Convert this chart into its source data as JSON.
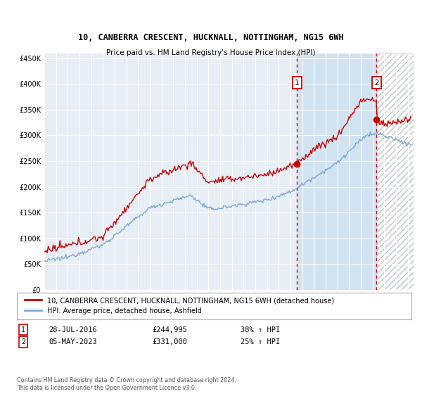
{
  "title1": "10, CANBERRA CRESCENT, HUCKNALL, NOTTINGHAM, NG15 6WH",
  "title2": "Price paid vs. HM Land Registry's House Price Index (HPI)",
  "legend_line1": "10, CANBERRA CRESCENT, HUCKNALL, NOTTINGHAM, NG15 6WH (detached house)",
  "legend_line2": "HPI: Average price, detached house, Ashfield",
  "annotation1_label": "1",
  "annotation1_date": "28-JUL-2016",
  "annotation1_price": "£244,995",
  "annotation1_hpi": "38% ↑ HPI",
  "annotation2_label": "2",
  "annotation2_date": "05-MAY-2023",
  "annotation2_price": "£331,000",
  "annotation2_hpi": "25% ↑ HPI",
  "copyright_text": "Contains HM Land Registry data © Crown copyright and database right 2024.\nThis data is licensed under the Open Government Licence v3.0.",
  "hpi_color": "#7aaadd",
  "price_color": "#cc0000",
  "annotation_color": "#cc0000",
  "vline_color": "#cc0000",
  "background_color": "#ffffff",
  "plot_bg_color": "#e8eef5",
  "grid_color": "#ffffff",
  "blue_fill_color": "#c8ddf0",
  "hatch_bg_color": "#f0f0f0",
  "ylim": [
    0,
    460000
  ],
  "xlim_start": 1995.0,
  "xlim_end": 2026.5,
  "purchase1_x": 2016.57,
  "purchase1_y": 244995,
  "purchase2_x": 2023.35,
  "purchase2_y": 331000
}
